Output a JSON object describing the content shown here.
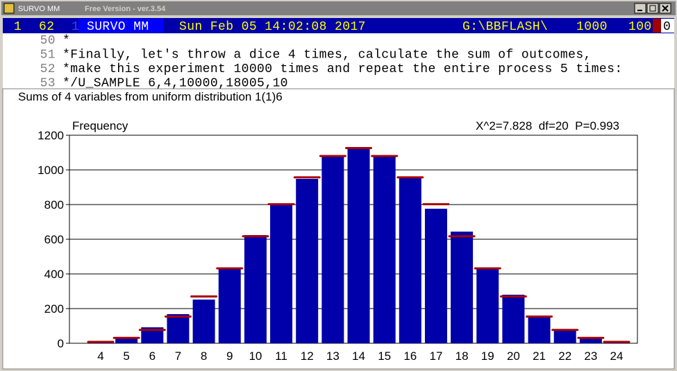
{
  "window": {
    "title": "SURVO MM",
    "subtitle": "Free Version  -  ver.3.54"
  },
  "status_bar": {
    "fields": [
      "1",
      "62",
      "1",
      "SURVO MM",
      "Sun Feb 05 14:02:08 2017",
      "G:\\BBFLASH\\",
      "1000",
      "100",
      "0"
    ]
  },
  "editor": {
    "lines": [
      {
        "number": "50",
        "text": "*"
      },
      {
        "number": "51",
        "text": "*Finally, let's throw a dice 4 times, calculate the sum of outcomes,"
      },
      {
        "number": "52",
        "text": "*make this experiment 10000 times and repeat the entire process 5 times:"
      },
      {
        "number": "53",
        "text": "*/U_SAMPLE 6,4,10000,18005,10"
      }
    ]
  },
  "chart_data": {
    "type": "bar",
    "title": "Sums of 4 variables from uniform distribution 1(1)6",
    "y_label": "Frequency",
    "annotation": "X^2=7.828  df=20  P=0.993",
    "categories": [
      "4",
      "5",
      "6",
      "7",
      "8",
      "9",
      "10",
      "11",
      "12",
      "13",
      "14",
      "15",
      "16",
      "17",
      "18",
      "19",
      "20",
      "21",
      "22",
      "23",
      "24"
    ],
    "series": [
      {
        "color": "#0000aa",
        "style": "bar",
        "values": [
          5,
          36,
          92,
          168,
          252,
          432,
          624,
          800,
          948,
          1076,
          1128,
          1076,
          952,
          776,
          644,
          436,
          280,
          156,
          76,
          36,
          8
        ]
      },
      {
        "color": "#aa0000",
        "style": "marker",
        "values": [
          8,
          31,
          77,
          154,
          270,
          432,
          617,
          802,
          957,
          1080,
          1126,
          1080,
          957,
          802,
          617,
          432,
          270,
          154,
          77,
          31,
          8
        ]
      }
    ],
    "ylim": [
      0,
      1200
    ],
    "yticks": [
      0,
      200,
      400,
      600,
      800,
      1000,
      1200
    ],
    "grid": true
  }
}
